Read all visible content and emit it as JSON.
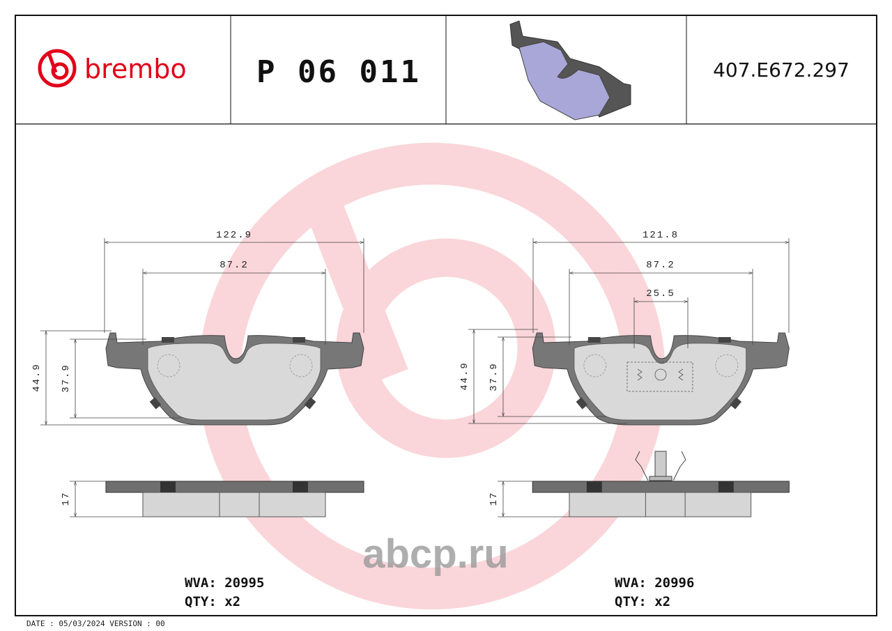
{
  "header": {
    "brand": "brembo",
    "part_number": "P 06 011",
    "code": "407.E672.297"
  },
  "drawings": [
    {
      "dimensions": {
        "width": "122.9",
        "inner_width": "87.2",
        "height": "44.9",
        "inner_height": "37.9",
        "thickness": "17"
      },
      "wva": "WVA: 20995",
      "qty": "QTY: x2"
    },
    {
      "dimensions": {
        "width": "121.8",
        "inner_width": "87.2",
        "slot_width": "25.5",
        "height": "44.9",
        "inner_height": "37.9",
        "thickness": "17"
      },
      "wva": "WVA: 20996",
      "qty": "QTY: x2"
    }
  ],
  "watermark": "abcp.ru",
  "footer": "DATE : 05/03/2024 VERSION : 00"
}
